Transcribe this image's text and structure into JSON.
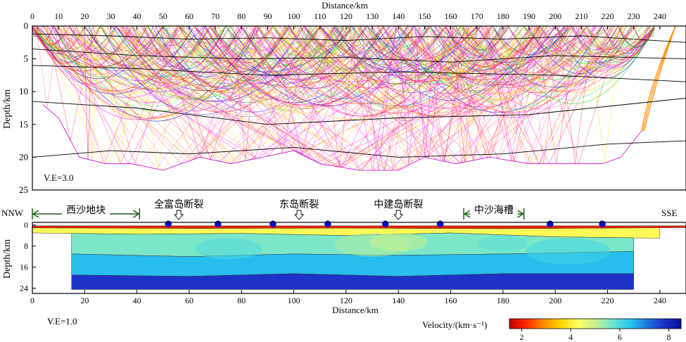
{
  "chart_data": [
    {
      "type": "ray_tracing_section",
      "title": "Distance/km",
      "xlabel": "Distance/km",
      "ylabel": "Depth/km",
      "xlim": [
        0,
        250
      ],
      "ylim": [
        25,
        0
      ],
      "x_ticks": [
        0,
        10,
        20,
        30,
        40,
        50,
        60,
        70,
        80,
        90,
        100,
        110,
        120,
        130,
        140,
        150,
        160,
        170,
        180,
        190,
        200,
        210,
        220,
        230,
        240
      ],
      "y_ticks": [
        0,
        5,
        10,
        15,
        20,
        25
      ],
      "annotation": "V.E=3.0",
      "ray_colors": [
        "#ff00ff",
        "#ff69b4",
        "#ff3355",
        "#ffd700",
        "#ffff33",
        "#00dd00",
        "#33ff66",
        "#0000cc",
        "#3333ff",
        "#ff0000",
        "#ff8c00",
        "#888888"
      ],
      "obs_stations_km": [
        52,
        73,
        92,
        113,
        135,
        155,
        197,
        218
      ],
      "ray_bottom_km": [
        [
          4,
          12
        ],
        [
          10,
          14
        ],
        [
          18,
          20
        ],
        [
          28,
          21
        ],
        [
          38,
          21
        ],
        [
          50,
          22
        ],
        [
          64,
          20
        ],
        [
          76,
          21
        ],
        [
          88,
          20
        ],
        [
          100,
          19
        ],
        [
          110,
          21
        ],
        [
          125,
          22
        ],
        [
          140,
          22
        ],
        [
          150,
          20
        ],
        [
          162,
          21
        ],
        [
          175,
          20
        ],
        [
          190,
          21
        ],
        [
          205,
          21
        ],
        [
          218,
          21
        ],
        [
          225,
          20
        ],
        [
          233,
          16
        ]
      ],
      "interfaces": [
        {
          "name": "layer-1",
          "points": [
            [
              0,
              1.2
            ],
            [
              30,
              1.5
            ],
            [
              60,
              2
            ],
            [
              90,
              1.8
            ],
            [
              120,
              2.2
            ],
            [
              150,
              1.6
            ],
            [
              180,
              2
            ],
            [
              210,
              1.5
            ],
            [
              250,
              2.5
            ]
          ]
        },
        {
          "name": "layer-2",
          "points": [
            [
              0,
              3.5
            ],
            [
              40,
              4.5
            ],
            [
              80,
              5
            ],
            [
              120,
              4.8
            ],
            [
              160,
              5.5
            ],
            [
              200,
              4.5
            ],
            [
              250,
              5
            ]
          ]
        },
        {
          "name": "layer-3",
          "points": [
            [
              0,
              6
            ],
            [
              40,
              6.5
            ],
            [
              90,
              7.5
            ],
            [
              140,
              7
            ],
            [
              200,
              7.5
            ],
            [
              250,
              8.5
            ]
          ]
        },
        {
          "name": "moho-upper",
          "points": [
            [
              0,
              11.5
            ],
            [
              40,
              12.5
            ],
            [
              90,
              15
            ],
            [
              140,
              14
            ],
            [
              190,
              13.5
            ],
            [
              250,
              11
            ]
          ]
        },
        {
          "name": "moho",
          "points": [
            [
              0,
              20
            ],
            [
              30,
              19
            ],
            [
              60,
              19.5
            ],
            [
              100,
              18.5
            ],
            [
              140,
              20
            ],
            [
              180,
              19.5
            ],
            [
              220,
              18
            ],
            [
              250,
              17.5
            ]
          ]
        }
      ]
    },
    {
      "type": "heatmap",
      "xlabel": "Distance/km",
      "ylabel": "Depth/km",
      "xlim": [
        0,
        250
      ],
      "ylim": [
        26,
        -1
      ],
      "x_ticks": [
        0,
        20,
        40,
        60,
        80,
        100,
        120,
        140,
        160,
        180,
        200,
        220,
        240
      ],
      "y_ticks": [
        0,
        8,
        16,
        24
      ],
      "annotation": "V.E=1.0",
      "left_label": "NNW",
      "right_label": "SSE",
      "colorbar": {
        "label": "Velocity/(km·s⁻¹)",
        "range": [
          1.5,
          8.5
        ],
        "ticks": [
          2,
          4,
          6,
          8
        ],
        "colors": [
          "#c00000",
          "#ff2a00",
          "#ff8c00",
          "#ffd700",
          "#ffff66",
          "#c8f08c",
          "#6ee6d2",
          "#28c8f0",
          "#1e78dc",
          "#1e32c8",
          "#0a0a96"
        ]
      },
      "obs_stations_km": [
        52,
        71,
        92,
        113,
        135,
        156,
        198,
        218
      ],
      "velocity_layers": [
        {
          "velocity": 2.0,
          "top": [
            [
              0,
              0.3
            ],
            [
              250,
              0.3
            ]
          ],
          "bottom": [
            [
              0,
              1.1
            ],
            [
              60,
              1.3
            ],
            [
              120,
              1.2
            ],
            [
              180,
              1.4
            ],
            [
              250,
              1.0
            ]
          ]
        },
        {
          "velocity": 4.2,
          "top": [
            [
              0,
              1.1
            ],
            [
              60,
              1.3
            ],
            [
              120,
              1.2
            ],
            [
              180,
              1.4
            ],
            [
              250,
              1.0
            ]
          ],
          "bottom": [
            [
              0,
              3
            ],
            [
              40,
              3.5
            ],
            [
              80,
              3.2
            ],
            [
              120,
              4
            ],
            [
              160,
              3
            ],
            [
              200,
              4.5
            ],
            [
              240,
              5
            ]
          ]
        },
        {
          "velocity": 5.6,
          "top": [
            [
              0,
              3
            ],
            [
              40,
              3.5
            ],
            [
              80,
              3.2
            ],
            [
              120,
              4
            ],
            [
              160,
              3
            ],
            [
              200,
              4.5
            ],
            [
              240,
              5
            ]
          ],
          "bottom": [
            [
              15,
              11
            ],
            [
              60,
              12
            ],
            [
              100,
              11
            ],
            [
              140,
              11.5
            ],
            [
              180,
              11
            ],
            [
              232,
              10
            ]
          ]
        },
        {
          "velocity": 6.5,
          "top": [
            [
              15,
              11
            ],
            [
              60,
              12
            ],
            [
              100,
              11
            ],
            [
              140,
              11.5
            ],
            [
              180,
              11
            ],
            [
              232,
              10
            ]
          ],
          "bottom": [
            [
              15,
              19
            ],
            [
              60,
              19.5
            ],
            [
              100,
              18.5
            ],
            [
              140,
              19.5
            ],
            [
              180,
              18.5
            ],
            [
              232,
              18.5
            ]
          ]
        },
        {
          "velocity": 7.8,
          "top": [
            [
              15,
              19
            ],
            [
              60,
              19.5
            ],
            [
              100,
              18.5
            ],
            [
              140,
              19.5
            ],
            [
              180,
              18.5
            ],
            [
              232,
              18.5
            ]
          ],
          "bottom": [
            [
              15,
              24.5
            ],
            [
              232,
              24.5
            ]
          ]
        }
      ],
      "regions": [
        {
          "label": "西沙地块",
          "type": "extent",
          "from_km": 0,
          "to_km": 41
        },
        {
          "label": "中沙海槽",
          "type": "extent",
          "from_km": 165,
          "to_km": 188
        }
      ],
      "faults": [
        {
          "label": "全富岛断裂",
          "at_km": 56
        },
        {
          "label": "东岛断裂",
          "at_km": 102
        },
        {
          "label": "中建岛断裂",
          "at_km": 140
        }
      ]
    }
  ]
}
